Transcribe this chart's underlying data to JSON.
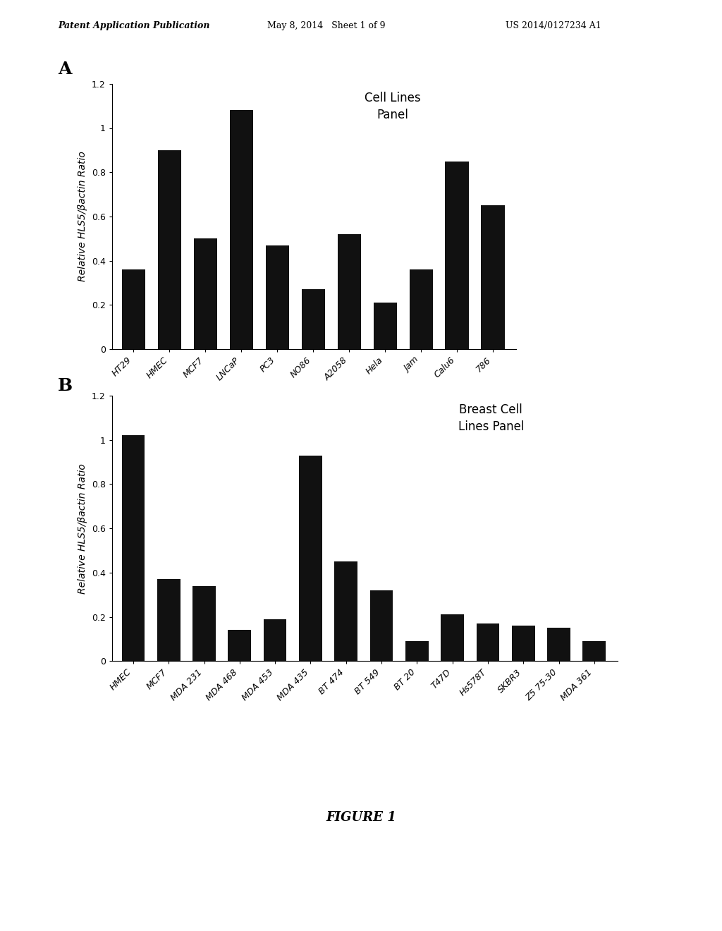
{
  "chart_A": {
    "categories": [
      "HT29",
      "HMEC",
      "MCF7",
      "LNCaP",
      "PC3",
      "NO86",
      "A2058",
      "Hela",
      "Jam",
      "Calu6",
      "786"
    ],
    "values": [
      0.36,
      0.9,
      0.5,
      1.08,
      0.47,
      0.27,
      0.52,
      0.21,
      0.36,
      0.85,
      0.65
    ],
    "ylabel": "Relative HLS5/βactin Ratio",
    "legend_text": "Cell Lines\nPanel",
    "ylim": [
      0,
      1.2
    ],
    "yticks": [
      0,
      0.2,
      0.4,
      0.6,
      0.8,
      1.0,
      1.2
    ],
    "panel_label": "A"
  },
  "chart_B": {
    "categories": [
      "HMEC",
      "MCF7",
      "MDA 231",
      "MDA 468",
      "MDA 453",
      "MDA 435",
      "BT 474",
      "BT 549",
      "BT 20",
      "T47D",
      "Hs578T",
      "SKBR3",
      "Z5 75-30",
      "MDA 361"
    ],
    "values": [
      1.02,
      0.37,
      0.34,
      0.14,
      0.19,
      0.93,
      0.45,
      0.32,
      0.09,
      0.21,
      0.17,
      0.16,
      0.15,
      0.09
    ],
    "ylabel": "Relative HLS5/βactin Ratio",
    "legend_text": "Breast Cell\nLines Panel",
    "ylim": [
      0,
      1.2
    ],
    "yticks": [
      0,
      0.2,
      0.4,
      0.6,
      0.8,
      1.0,
      1.2
    ],
    "panel_label": "B"
  },
  "figure_label": "FIGURE 1",
  "header_left": "Patent Application Publication",
  "header_mid": "May 8, 2014   Sheet 1 of 9",
  "header_right": "US 2014/0127234 A1",
  "bar_color": "#111111",
  "bg_color": "#ffffff",
  "font_size_tick": 9,
  "font_size_ylabel": 10,
  "font_size_panel": 18,
  "font_size_legend": 12
}
